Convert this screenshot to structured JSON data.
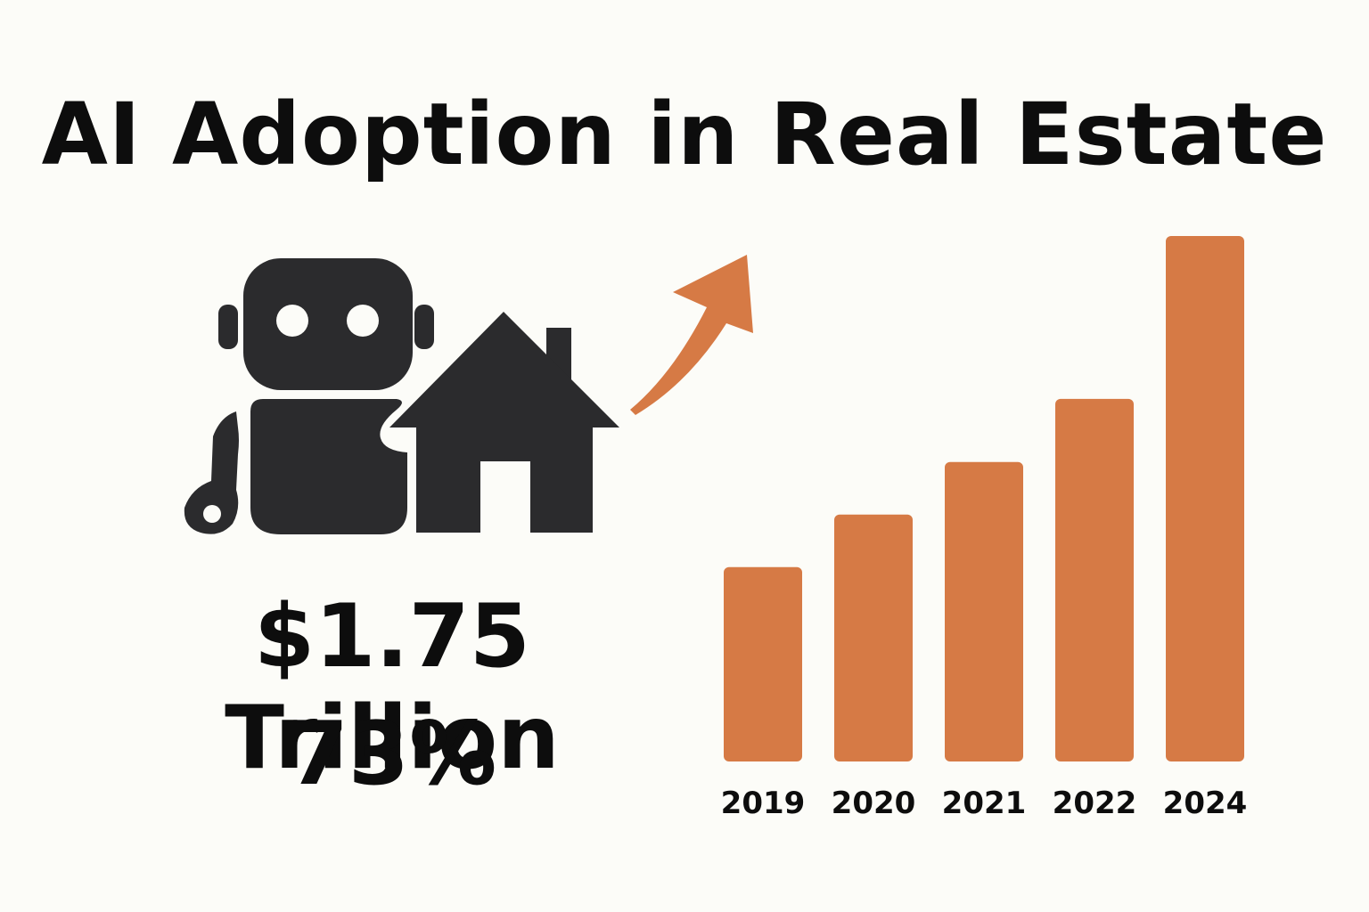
{
  "title": "AI Adoption in Real Estate",
  "stats": {
    "amount": "$1.75 Trillion",
    "percent": "73%"
  },
  "illustration": {
    "icons": [
      "robot-icon",
      "house-icon",
      "trend-arrow-icon"
    ],
    "colors": {
      "dark": "#2b2b2d",
      "accent": "#d67a45"
    }
  },
  "chart_data": {
    "type": "bar",
    "categories": [
      "2019",
      "2020",
      "2021",
      "2022",
      "2024"
    ],
    "values": [
      37,
      47,
      57,
      69,
      100
    ],
    "ylim": [
      0,
      100
    ],
    "grid": false,
    "title": "",
    "xlabel": "",
    "ylabel": "",
    "color": "#d67a45"
  }
}
